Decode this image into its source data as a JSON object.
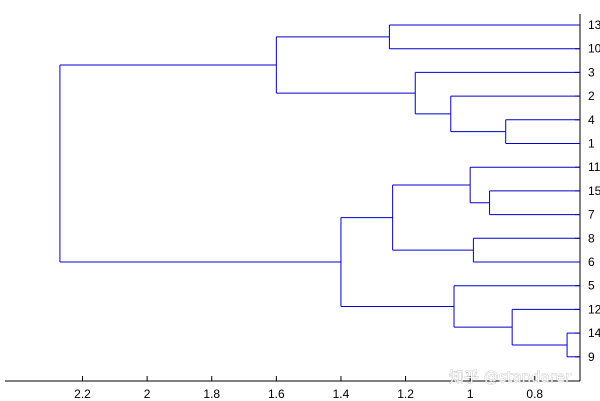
{
  "chart_data": {
    "type": "dendrogram",
    "orientation": "horizontal",
    "x_axis_direction": "reversed",
    "xlim": [
      2.44,
      0.66
    ],
    "x_ticks": [
      2.2,
      2,
      1.8,
      1.6,
      1.4,
      1.2,
      1,
      0.8
    ],
    "x_tick_labels": [
      "2.2",
      "2",
      "1.8",
      "1.6",
      "1.4",
      "1.2",
      "1",
      "0.8"
    ],
    "leaf_order_top_to_bottom": [
      "13",
      "10",
      "3",
      "2",
      "4",
      "1",
      "11",
      "15",
      "7",
      "8",
      "6",
      "5",
      "12",
      "14",
      "9"
    ],
    "link_color": "#0000cc",
    "merges": [
      {
        "left": "14",
        "right": "9",
        "height": 0.7
      },
      {
        "left": "4",
        "right": "1",
        "height": 0.89
      },
      {
        "left": "15",
        "right": "7",
        "height": 0.94
      },
      {
        "left": "8",
        "right": "6",
        "height": 0.99
      },
      {
        "left": "11",
        "right": "(15,7)",
        "height": 1.0
      },
      {
        "left": "12",
        "right": "(14,9)",
        "height": 0.87
      },
      {
        "left": "2",
        "right": "(4,1)",
        "height": 1.06
      },
      {
        "left": "5",
        "right": "(12,14,9)",
        "height": 1.05
      },
      {
        "left": "3",
        "right": "(2,4,1)",
        "height": 1.17
      },
      {
        "left": "(11,15,7)",
        "right": "(8,6)",
        "height": 1.24
      },
      {
        "left": "13",
        "right": "10",
        "height": 1.25
      },
      {
        "left": "(11,15,7,8,6)",
        "right": "(5,12,14,9)",
        "height": 1.4
      },
      {
        "left": "(13,10)",
        "right": "(3,2,4,1)",
        "height": 1.6
      },
      {
        "left": "(13,10,3,2,4,1)",
        "right": "(11,15,7,8,6,5,12,14,9)",
        "height": 2.27
      }
    ]
  },
  "watermark": {
    "text": "知乎 @standarer"
  }
}
